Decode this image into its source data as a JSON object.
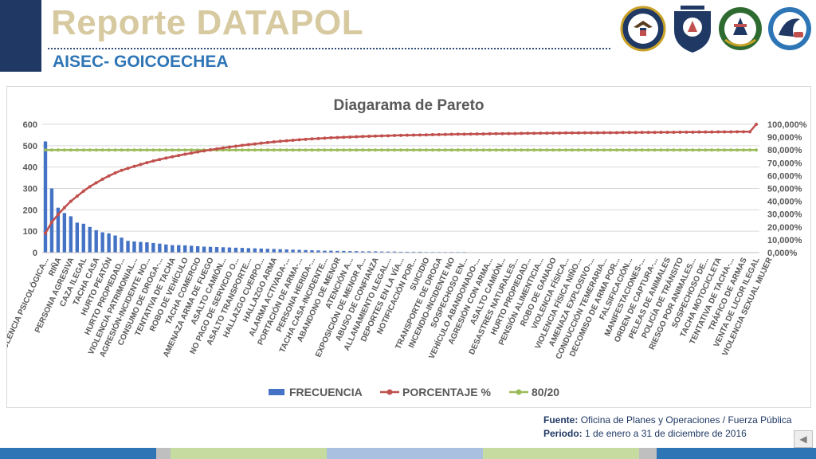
{
  "header": {
    "title": "Reporte DATAPOL",
    "subtitle": "AISEC- GOICOECHEA",
    "logos": [
      "us-embassy-seal-icon",
      "fuerza-publica-badge-icon",
      "police-emblem-icon",
      "aisec-logo-icon"
    ]
  },
  "footer": {
    "source_label": "Fuente:",
    "source_value": "Oficina de Planes y Operaciones / Fuerza Pública",
    "period_label": "Periodo:",
    "period_value": "1 de enero a 31 de diciembre de 2016"
  },
  "colors": {
    "frecuencia": "#4472c4",
    "porcentaje": "#c0504d",
    "ochenta_veinte": "#9bbb59",
    "title_beige": "#d7c9a0",
    "navy": "#1f3864",
    "subtitle_blue": "#2e75b6"
  },
  "chart_data": {
    "type": "bar",
    "title": "Diagarama de Pareto",
    "ylim": [
      0,
      600
    ],
    "y_ticks": [
      "0",
      "100",
      "200",
      "300",
      "400",
      "500",
      "600"
    ],
    "y2lim": [
      0,
      100
    ],
    "y2_ticks": [
      "0,000%",
      "10,000%",
      "20,000%",
      "30,000%",
      "40,000%",
      "50,000%",
      "60,000%",
      "70,000%",
      "80,000%",
      "90,000%",
      "100,000%"
    ],
    "category_labels": [
      "VIOLENCIA PSICOLÓGICA...",
      "RIÑA",
      "PERSONA AGRESIVA",
      "CAZA ILEGAL",
      "TACHA CASA",
      "HURTO PEATÓN",
      "HURTO PROPIEDAD...",
      "VIOLENCIA PATRIMONIAL...",
      "AGRESIÓN-INCIDENTE NO...",
      "CONSUMO DE DROGA-...",
      "TENTATIVA DE TACHA",
      "ROBO DE VEHÍCULO",
      "TACHA COMERCIO",
      "AMENAZA ARMA DE FUEGO",
      "ASALTO CAMIÓN...",
      "NO PAGO DE SERVICIO O...",
      "ASALTO TRANSPORTE...",
      "HALLAZGO CUERPO...",
      "HALLAZGO ARMA",
      "ALARMA ACTIVADA-...",
      "PORTACIÓN DE ARMA-...",
      "PERSONA HERIDA-...",
      "TACHA CASA-INCIDENTE...",
      "ABANDONO DE MENOR",
      "ATENCIÓN A...",
      "EXPOSICIÓN DE MENOR A...",
      "ABUSO DE CONFIANZA",
      "ALLANAMIENTO ILEGAL...",
      "DEPORTES EN LA VÍA...",
      "NOTIFICACIÓN POR...",
      "SUICIDIO",
      "TRANSPORTE DE DROGA",
      "INCENDIO-INCIDENTE NO",
      "SOSPECHOSO EN...",
      "VEHÍCULO ABANDONADO-...",
      "AGRESIÓN CON ARMA...",
      "ASALTO CAMIÓN...",
      "DESASTRES NATURALES...",
      "HURTO PROPIEDAD...",
      "PENSIÓN ALIMENTICIA...",
      "ROBO DE GANADO",
      "VIOLENCIA FÍSICA...",
      "VIOLENCIA FÍSICA NIÑO...",
      "AMENAZA EXPLOSIVO-...",
      "CONDUCCIÓN TEMERARIA...",
      "DECOMISO DE ARMA POR...",
      "FALSIFICACIÓN...",
      "MANIFESTACIONES-...",
      "ORDEN DE CAPTURA-...",
      "PELEAS DE ANIMALES",
      "POLICÍA DE TRÁNSITO",
      "RIESGO POR ANIMALES...",
      "SOSPECHOSO DE...",
      "TACHA MOTOCICLETA",
      "TENTATIVA DE TACHA-...",
      "TRÁFICO DE ARMAS",
      "VENTA DE LICOR ILEGAL",
      "VIOLENCIA SEXUAL MUJER"
    ],
    "category_count": 113,
    "label_every": 2,
    "frecuencia": [
      520,
      300,
      210,
      185,
      170,
      140,
      135,
      120,
      105,
      95,
      90,
      80,
      70,
      55,
      52,
      50,
      48,
      45,
      42,
      38,
      35,
      35,
      34,
      32,
      30,
      28,
      27,
      26,
      25,
      24,
      23,
      22,
      21,
      20,
      19,
      18,
      17,
      16,
      15,
      14,
      13,
      12,
      11,
      10,
      9,
      9,
      8,
      8,
      7,
      7,
      6,
      6,
      6,
      5,
      5,
      5,
      4,
      4,
      4,
      4,
      3,
      3,
      3,
      3,
      3,
      3,
      3,
      2,
      2,
      2,
      2,
      2,
      2,
      2,
      2,
      2,
      2,
      2,
      2,
      2,
      2,
      1,
      1,
      1,
      1,
      1,
      1,
      1,
      1,
      1,
      1,
      1,
      1,
      1,
      1,
      1,
      1,
      1,
      1,
      1,
      1,
      1,
      1,
      1,
      1,
      1,
      1,
      1,
      1,
      1,
      1,
      1,
      1
    ],
    "porcentaje_cumulative_share": [
      15.0,
      23.7,
      29.7,
      35.1,
      40.0,
      44.0,
      47.9,
      51.4,
      54.4,
      57.2,
      59.8,
      62.1,
      64.1,
      65.7,
      67.2,
      68.7,
      70.1,
      71.4,
      72.6,
      73.7,
      74.7,
      75.7,
      76.7,
      77.6,
      78.5,
      79.3,
      80.1,
      80.8,
      81.6,
      82.3,
      82.9,
      83.6,
      84.2,
      84.7,
      85.3,
      85.8,
      86.3,
      86.8,
      87.2,
      87.6,
      88.0,
      88.3,
      88.7,
      88.9,
      89.2,
      89.5,
      89.7,
      89.9,
      90.1,
      90.3,
      90.5,
      90.7,
      90.8,
      91.0,
      91.1,
      91.3,
      91.4,
      91.5,
      91.6,
      91.7,
      91.8,
      91.9,
      92.0,
      92.1,
      92.2,
      92.3,
      92.3,
      92.4,
      92.5,
      92.5,
      92.6,
      92.7,
      92.7,
      92.8,
      92.8,
      92.9,
      93.0,
      93.0,
      93.1,
      93.1,
      93.2,
      93.2,
      93.3,
      93.3,
      93.3,
      93.4,
      93.4,
      93.4,
      93.5,
      93.5,
      93.5,
      93.6,
      93.6,
      93.6,
      93.7,
      93.7,
      93.7,
      93.8,
      93.8,
      93.8,
      93.9,
      93.9,
      93.9,
      94.0,
      94.0,
      94.0,
      94.1,
      94.1,
      94.1,
      94.2,
      94.2,
      94.2,
      100.0
    ],
    "ochenta_veinte": 80,
    "legend": [
      {
        "name": "FRECUENCIA",
        "kind": "bar"
      },
      {
        "name": "PORCENTAJE %",
        "kind": "line"
      },
      {
        "name": "80/20",
        "kind": "line"
      }
    ],
    "legend_position": "bottom",
    "grid": true
  }
}
